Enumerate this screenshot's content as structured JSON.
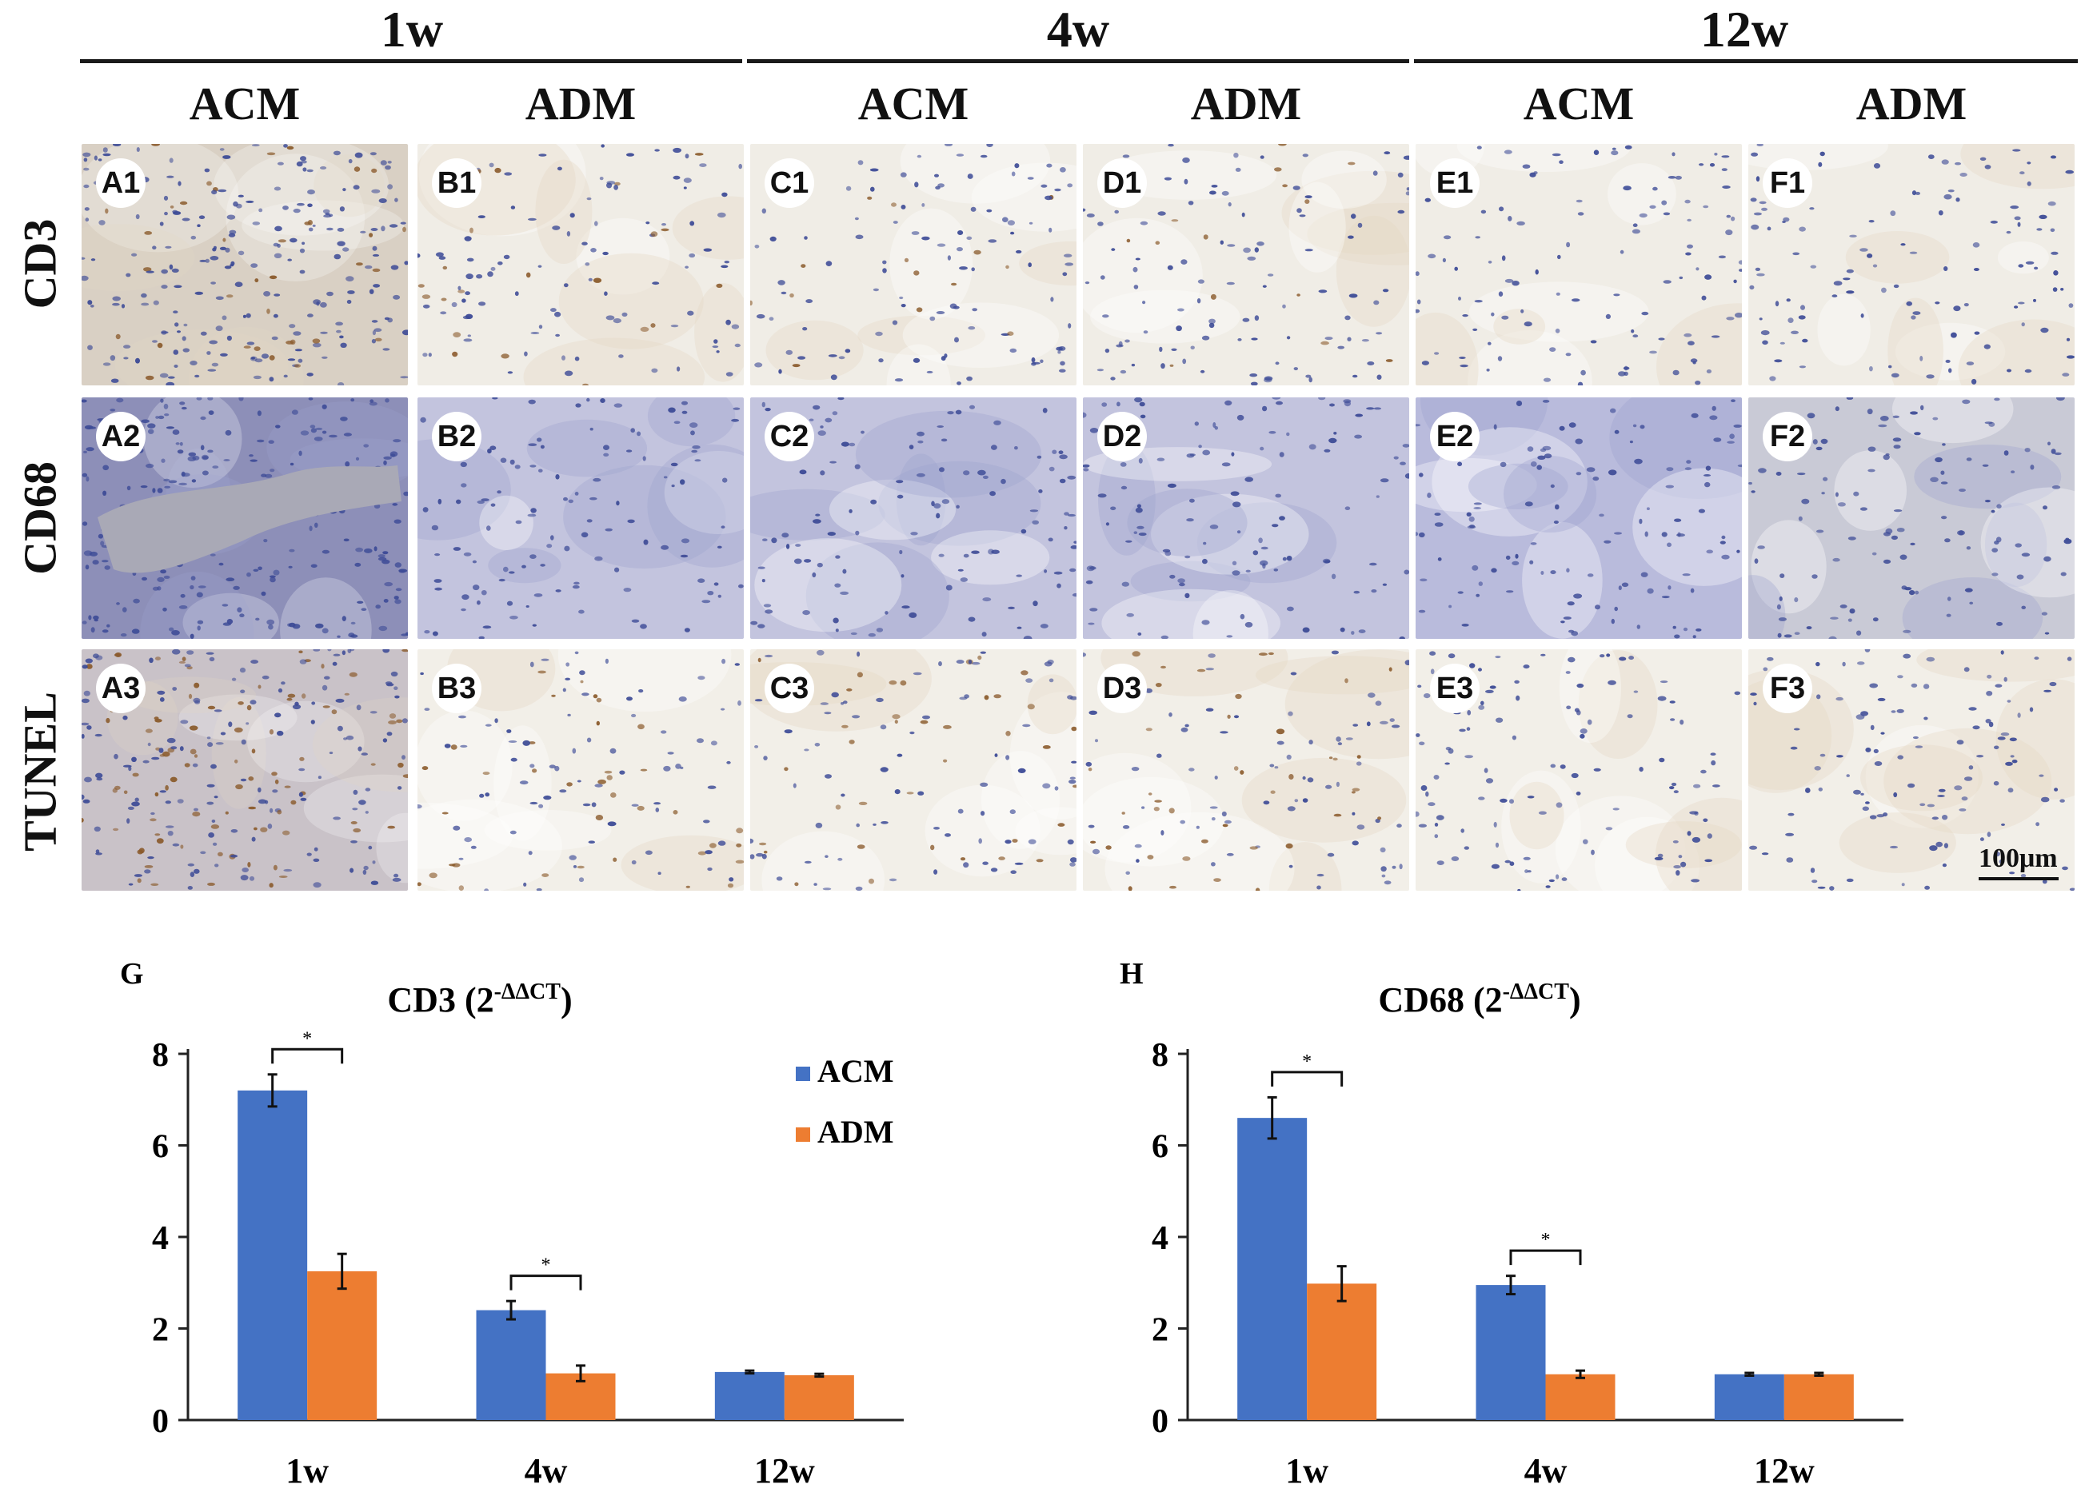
{
  "figure": {
    "time_headers": [
      "1w",
      "4w",
      "12w"
    ],
    "column_headers": [
      "ACM",
      "ADM",
      "ACM",
      "ADM",
      "ACM",
      "ADM"
    ],
    "row_labels": [
      "CD3",
      "CD68",
      "TUNEL"
    ],
    "panel_labels": [
      [
        "A1",
        "B1",
        "C1",
        "D1",
        "E1",
        "F1"
      ],
      [
        "A2",
        "B2",
        "C2",
        "D2",
        "E2",
        "F2"
      ],
      [
        "A3",
        "B3",
        "C3",
        "D3",
        "E3",
        "F3"
      ]
    ],
    "scale_bar": "100μm",
    "colors": {
      "cd3_bg": "#f0ede6",
      "cd68_bg": "#c3c4de",
      "tunel_bg": "#f2efe8",
      "hematoxylin": "#3c4a96",
      "dab_brown": "#8a5a2b"
    }
  },
  "chart_data": [
    {
      "panel_letter": "G",
      "type": "bar",
      "title_main": "CD3 (2",
      "title_sup": "-ΔΔCT",
      "title_end": ")",
      "categories": [
        "1w",
        "4w",
        "12w"
      ],
      "series": [
        {
          "name": "ACM",
          "color": "#4472c4",
          "values": [
            7.2,
            2.4,
            1.05
          ],
          "errors": [
            0.35,
            0.2,
            0.03
          ]
        },
        {
          "name": "ADM",
          "color": "#ed7d31",
          "values": [
            3.25,
            1.02,
            0.98
          ],
          "errors": [
            0.38,
            0.17,
            0.03
          ]
        }
      ],
      "ylim": [
        0,
        8
      ],
      "yticks": [
        "0",
        "2",
        "4",
        "6",
        "8"
      ],
      "significance": [
        "*",
        "*"
      ],
      "legend": "top-right"
    },
    {
      "panel_letter": "H",
      "type": "bar",
      "title_main": "CD68 (2",
      "title_sup": "-ΔΔCT",
      "title_end": ")",
      "categories": [
        "1w",
        "4w",
        "12w"
      ],
      "series": [
        {
          "name": "ACM",
          "color": "#4472c4",
          "values": [
            6.6,
            2.95,
            1.0
          ],
          "errors": [
            0.45,
            0.2,
            0.03
          ]
        },
        {
          "name": "ADM",
          "color": "#ed7d31",
          "values": [
            2.98,
            1.0,
            1.0
          ],
          "errors": [
            0.38,
            0.08,
            0.03
          ]
        }
      ],
      "ylim": [
        0,
        8
      ],
      "yticks": [
        "0",
        "2",
        "4",
        "6",
        "8"
      ],
      "significance": [
        "*",
        "*"
      ]
    }
  ]
}
